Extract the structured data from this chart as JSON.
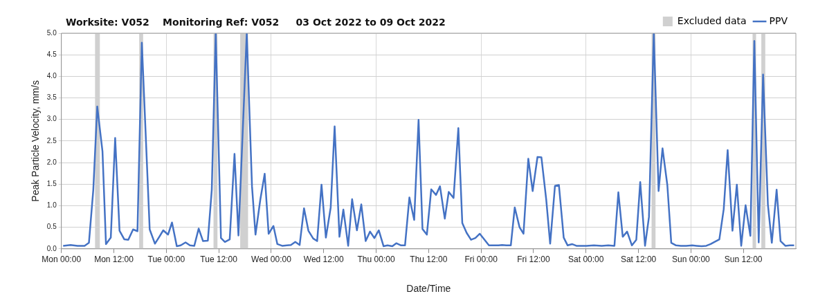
{
  "chart_data": {
    "type": "line",
    "title": "Worksite: V052    Monitoring Ref: V052     03 Oct 2022 to 09 Oct 2022",
    "xlabel": "Date/Time",
    "ylabel": "Peak Particle Velocity, mm/s",
    "xlim": [
      "2022-10-03T00:00",
      "2022-10-10T00:00"
    ],
    "xticks": [
      {
        "value": "2022-10-03T00:00",
        "label": "Mon 00:00"
      },
      {
        "value": "2022-10-03T12:00",
        "label": "Mon 12:00"
      },
      {
        "value": "2022-10-04T00:00",
        "label": "Tue 00:00"
      },
      {
        "value": "2022-10-04T12:00",
        "label": "Tue 12:00"
      },
      {
        "value": "2022-10-05T00:00",
        "label": "Wed 00:00"
      },
      {
        "value": "2022-10-05T12:00",
        "label": "Wed 12:00"
      },
      {
        "value": "2022-10-06T00:00",
        "label": "Thu 00:00"
      },
      {
        "value": "2022-10-06T12:00",
        "label": "Thu 12:00"
      },
      {
        "value": "2022-10-07T00:00",
        "label": "Fri 00:00"
      },
      {
        "value": "2022-10-07T12:00",
        "label": "Fri 12:00"
      },
      {
        "value": "2022-10-08T00:00",
        "label": "Sat 00:00"
      },
      {
        "value": "2022-10-08T12:00",
        "label": "Sat 12:00"
      },
      {
        "value": "2022-10-09T00:00",
        "label": "Sun 00:00"
      },
      {
        "value": "2022-10-09T12:00",
        "label": "Sun 12:00"
      }
    ],
    "ylim": [
      0,
      5
    ],
    "yticks": [
      {
        "value": 0,
        "label": "0.0"
      },
      0.5,
      {
        "value": 1,
        "label": "1.0"
      },
      1.5,
      {
        "value": 2,
        "label": "2.0"
      },
      2.5,
      {
        "value": 3,
        "label": "3.0"
      },
      3.5,
      {
        "value": 4,
        "label": "4.0"
      },
      4.5,
      {
        "value": 5,
        "label": "5.0"
      }
    ],
    "grid": true,
    "legend": "top right",
    "marker": "none",
    "line_style": "solid",
    "bands": [
      {
        "axis": "x",
        "from": "2022-10-03T07:42",
        "to": "2022-10-03T08:48",
        "label": "Excluded data",
        "color": "#d0d0d0"
      },
      {
        "axis": "x",
        "from": "2022-10-03T17:48",
        "to": "2022-10-03T18:42",
        "color": "#d0d0d0"
      },
      {
        "axis": "x",
        "from": "2022-10-04T10:48",
        "to": "2022-10-04T11:42",
        "color": "#d0d0d0"
      },
      {
        "axis": "x",
        "from": "2022-10-04T16:54",
        "to": "2022-10-04T18:42",
        "color": "#d0d0d0"
      },
      {
        "axis": "x",
        "from": "2022-10-08T15:00",
        "to": "2022-10-08T15:54",
        "color": "#d0d0d0"
      },
      {
        "axis": "x",
        "from": "2022-10-09T14:06",
        "to": "2022-10-09T14:54",
        "color": "#d0d0d0"
      },
      {
        "axis": "x",
        "from": "2022-10-09T16:06",
        "to": "2022-10-09T17:00",
        "color": "#d0d0d0"
      }
    ],
    "series": [
      {
        "name": "PPV",
        "color": "#4472c4",
        "x": [
          "2022-10-03T00:24",
          "2022-10-03T02:06",
          "2022-10-03T03:42",
          "2022-10-03T05:18",
          "2022-10-03T06:18",
          "2022-10-03T07:18",
          "2022-10-03T08:12",
          "2022-10-03T09:24",
          "2022-10-03T10:12",
          "2022-10-03T11:18",
          "2022-10-03T12:18",
          "2022-10-03T13:18",
          "2022-10-03T14:24",
          "2022-10-03T15:18",
          "2022-10-03T16:24",
          "2022-10-03T17:24",
          "2022-10-03T18:24",
          "2022-10-03T20:12",
          "2022-10-03T21:24",
          "2022-10-03T22:24",
          "2022-10-03T23:18",
          "2022-10-04T00:24",
          "2022-10-04T01:18",
          "2022-10-04T02:24",
          "2022-10-04T03:18",
          "2022-10-04T04:24",
          "2022-10-04T05:24",
          "2022-10-04T06:24",
          "2022-10-04T07:24",
          "2022-10-04T08:24",
          "2022-10-04T09:30",
          "2022-10-04T10:24",
          "2022-10-04T11:18",
          "2022-10-04T12:30",
          "2022-10-04T13:24",
          "2022-10-04T14:30",
          "2022-10-04T15:36",
          "2022-10-04T16:30",
          "2022-10-04T18:24",
          "2022-10-04T19:36",
          "2022-10-04T20:24",
          "2022-10-04T21:30",
          "2022-10-04T22:30",
          "2022-10-04T23:24",
          "2022-10-05T00:30",
          "2022-10-05T01:24",
          "2022-10-05T02:30",
          "2022-10-05T03:36",
          "2022-10-05T04:30",
          "2022-10-05T05:30",
          "2022-10-05T06:30",
          "2022-10-05T07:30",
          "2022-10-05T08:30",
          "2022-10-05T09:36",
          "2022-10-05T10:30",
          "2022-10-05T11:30",
          "2022-10-05T12:30",
          "2022-10-05T13:36",
          "2022-10-05T14:30",
          "2022-10-05T15:36",
          "2022-10-05T16:30",
          "2022-10-05T17:36",
          "2022-10-05T18:30",
          "2022-10-05T19:36",
          "2022-10-05T20:36",
          "2022-10-05T21:36",
          "2022-10-05T22:36",
          "2022-10-05T23:36",
          "2022-10-06T00:36",
          "2022-10-06T01:42",
          "2022-10-06T02:36",
          "2022-10-06T03:42",
          "2022-10-06T04:36",
          "2022-10-06T05:42",
          "2022-10-06T06:36",
          "2022-10-06T07:36",
          "2022-10-06T08:42",
          "2022-10-06T09:42",
          "2022-10-06T10:36",
          "2022-10-06T11:36",
          "2022-10-06T12:36",
          "2022-10-06T13:42",
          "2022-10-06T14:36",
          "2022-10-06T15:42",
          "2022-10-06T16:36",
          "2022-10-06T17:42",
          "2022-10-06T18:48",
          "2022-10-06T19:42",
          "2022-10-06T20:42",
          "2022-10-06T21:42",
          "2022-10-06T22:42",
          "2022-10-06T23:42",
          "2022-10-07T00:48",
          "2022-10-07T01:48",
          "2022-10-07T02:54",
          "2022-10-07T04:00",
          "2022-10-07T04:48",
          "2022-10-07T05:48",
          "2022-10-07T06:48",
          "2022-10-07T07:42",
          "2022-10-07T08:48",
          "2022-10-07T09:42",
          "2022-10-07T10:48",
          "2022-10-07T11:48",
          "2022-10-07T12:54",
          "2022-10-07T13:48",
          "2022-10-07T14:54",
          "2022-10-07T15:48",
          "2022-10-07T16:54",
          "2022-10-07T17:48",
          "2022-10-07T18:54",
          "2022-10-07T19:48",
          "2022-10-07T20:48",
          "2022-10-07T21:48",
          "2022-10-07T22:54",
          "2022-10-08T00:06",
          "2022-10-08T01:48",
          "2022-10-08T03:36",
          "2022-10-08T05:06",
          "2022-10-08T06:30",
          "2022-10-08T07:24",
          "2022-10-08T08:24",
          "2022-10-08T09:24",
          "2022-10-08T10:30",
          "2022-10-08T11:30",
          "2022-10-08T12:24",
          "2022-10-08T13:30",
          "2022-10-08T14:24",
          "2022-10-08T15:30",
          "2022-10-08T16:36",
          "2022-10-08T17:30",
          "2022-10-08T18:36",
          "2022-10-08T19:30",
          "2022-10-08T20:36",
          "2022-10-08T21:42",
          "2022-10-08T22:54",
          "2022-10-09T00:18",
          "2022-10-09T01:18",
          "2022-10-09T02:24",
          "2022-10-09T03:30",
          "2022-10-09T04:30",
          "2022-10-09T05:36",
          "2022-10-09T06:30",
          "2022-10-09T07:30",
          "2022-10-09T08:24",
          "2022-10-09T09:30",
          "2022-10-09T10:30",
          "2022-10-09T11:30",
          "2022-10-09T12:30",
          "2022-10-09T13:36",
          "2022-10-09T14:30",
          "2022-10-09T15:30",
          "2022-10-09T16:30",
          "2022-10-09T17:36",
          "2022-10-09T18:30",
          "2022-10-09T19:36",
          "2022-10-09T20:30",
          "2022-10-09T21:36",
          "2022-10-09T22:36",
          "2022-10-09T23:36"
        ],
        "values": [
          0.07,
          0.09,
          0.07,
          0.07,
          0.14,
          1.37,
          3.3,
          2.26,
          0.11,
          0.26,
          2.57,
          0.42,
          0.22,
          0.21,
          0.45,
          0.41,
          4.78,
          0.45,
          0.12,
          0.28,
          0.43,
          0.33,
          0.61,
          0.06,
          0.08,
          0.15,
          0.08,
          0.07,
          0.47,
          0.18,
          0.19,
          1.37,
          5.0,
          0.25,
          0.16,
          0.22,
          2.2,
          0.31,
          5.0,
          1.45,
          0.33,
          1.14,
          1.74,
          0.35,
          0.53,
          0.11,
          0.07,
          0.08,
          0.09,
          0.16,
          0.09,
          0.94,
          0.42,
          0.24,
          0.18,
          1.49,
          0.26,
          0.96,
          2.84,
          0.28,
          0.91,
          0.07,
          1.15,
          0.43,
          1.03,
          0.18,
          0.4,
          0.25,
          0.43,
          0.06,
          0.08,
          0.06,
          0.13,
          0.08,
          0.08,
          1.19,
          0.67,
          2.99,
          0.46,
          0.33,
          1.38,
          1.25,
          1.45,
          0.7,
          1.32,
          1.18,
          2.8,
          0.6,
          0.37,
          0.21,
          0.25,
          0.35,
          0.21,
          0.08,
          0.08,
          0.08,
          0.09,
          0.08,
          0.08,
          0.96,
          0.5,
          0.35,
          2.09,
          1.34,
          2.13,
          2.12,
          1.14,
          0.12,
          1.46,
          1.48,
          0.26,
          0.08,
          0.11,
          0.07,
          0.07,
          0.07,
          0.08,
          0.07,
          0.08,
          0.07,
          1.31,
          0.28,
          0.4,
          0.08,
          0.21,
          1.55,
          0.07,
          0.74,
          5.0,
          1.34,
          2.33,
          1.48,
          0.14,
          0.08,
          0.07,
          0.07,
          0.08,
          0.07,
          0.06,
          0.07,
          0.11,
          0.17,
          0.22,
          0.92,
          2.29,
          0.42,
          1.49,
          0.07,
          1.01,
          0.3,
          4.82,
          0.15,
          4.04,
          1.03,
          0.14,
          1.37,
          0.18,
          0.07,
          0.08,
          0.08
        ]
      }
    ]
  }
}
